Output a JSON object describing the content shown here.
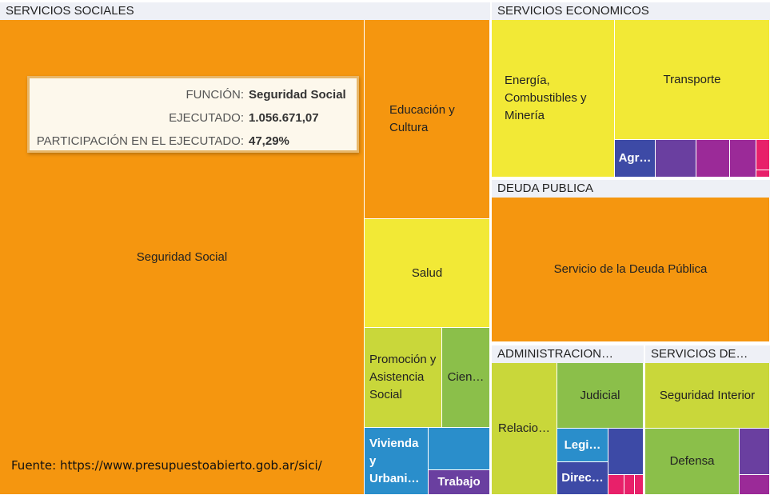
{
  "colors": {
    "orange": "#f5960f",
    "yellow": "#f2e936",
    "lime": "#c9d73a",
    "green": "#8bbf4a",
    "blue": "#2a8ecb",
    "navy": "#3d4aa6",
    "purple": "#6a3fa0",
    "magenta": "#9b2a98",
    "pink": "#e8206a",
    "header_bg": "#eef0f6"
  },
  "chart_data": {
    "type": "treemap",
    "groups": [
      {
        "name": "SERVICIOS SOCIALES",
        "items": [
          "Seguridad Social",
          "Educación y Cultura",
          "Salud",
          "Promoción y Asistencia Social",
          "Cien…",
          "Vivienda y Urbani…",
          "Trabajo"
        ]
      },
      {
        "name": "SERVICIOS ECONOMICOS",
        "items": [
          "Energía, Combustibles y Minería",
          "Transporte",
          "Agr…"
        ]
      },
      {
        "name": "DEUDA PUBLICA",
        "items": [
          "Servicio de la Deuda Pública"
        ]
      },
      {
        "name": "ADMINISTRACION…",
        "items": [
          "Relacio…",
          "Judicial",
          "Legi…",
          "Direc…"
        ]
      },
      {
        "name": "SERVICIOS DE…",
        "items": [
          "Seguridad Interior",
          "Defensa"
        ]
      }
    ],
    "tooltip": {
      "funcion_label": "FUNCIÓN:",
      "funcion_value": "Seguridad Social",
      "ejecutado_label": "EJECUTADO:",
      "ejecutado_value": "1.056.671,07",
      "participacion_label": "PARTICIPACIÓN EN EL EJECUTADO:",
      "participacion_value": "47,29%"
    }
  },
  "headers": {
    "servicios_sociales": "SERVICIOS SOCIALES",
    "servicios_economicos": "SERVICIOS ECONOMICOS",
    "deuda_publica": "DEUDA PUBLICA",
    "administracion": "ADMINISTRACION…",
    "servicios_de": "SERVICIOS DE…"
  },
  "tiles": {
    "seguridad_social": "Seguridad Social",
    "educacion": "Educación y Cultura",
    "salud": "Salud",
    "promocion": "Promoción y Asistencia Social",
    "ciencia": "Cien…",
    "vivienda": "Vivienda y Urbani…",
    "trabajo": "Trabajo",
    "energia": "Energía, Combustibles y Minería",
    "transporte": "Transporte",
    "agricultura": "Agr…",
    "deuda": "Servicio de la Deuda Pública",
    "relaciones": "Relacio…",
    "judicial": "Judicial",
    "legislativa": "Legi…",
    "direccion": "Direc…",
    "seguridad_interior": "Seguridad Interior",
    "defensa": "Defensa"
  },
  "source": "Fuente: https://www.presupuestoabierto.gob.ar/sici/"
}
